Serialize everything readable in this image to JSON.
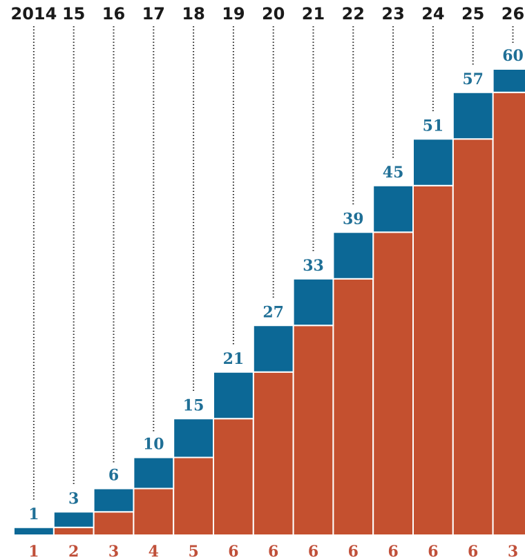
{
  "chart_data": {
    "type": "bar",
    "categories": [
      "2014",
      "15",
      "16",
      "17",
      "18",
      "19",
      "20",
      "21",
      "22",
      "23",
      "24",
      "25",
      "26"
    ],
    "series": [
      {
        "values": [
          1,
          3,
          6,
          10,
          15,
          21,
          27,
          33,
          39,
          45,
          51,
          57,
          60
        ],
        "color": "#0c6896"
      },
      {
        "values": [
          1,
          2,
          3,
          4,
          5,
          6,
          6,
          6,
          6,
          6,
          6,
          6,
          3
        ],
        "color": "#c4502f"
      }
    ],
    "ylim": [
      0,
      60
    ],
    "grid": false,
    "legend": "none"
  }
}
